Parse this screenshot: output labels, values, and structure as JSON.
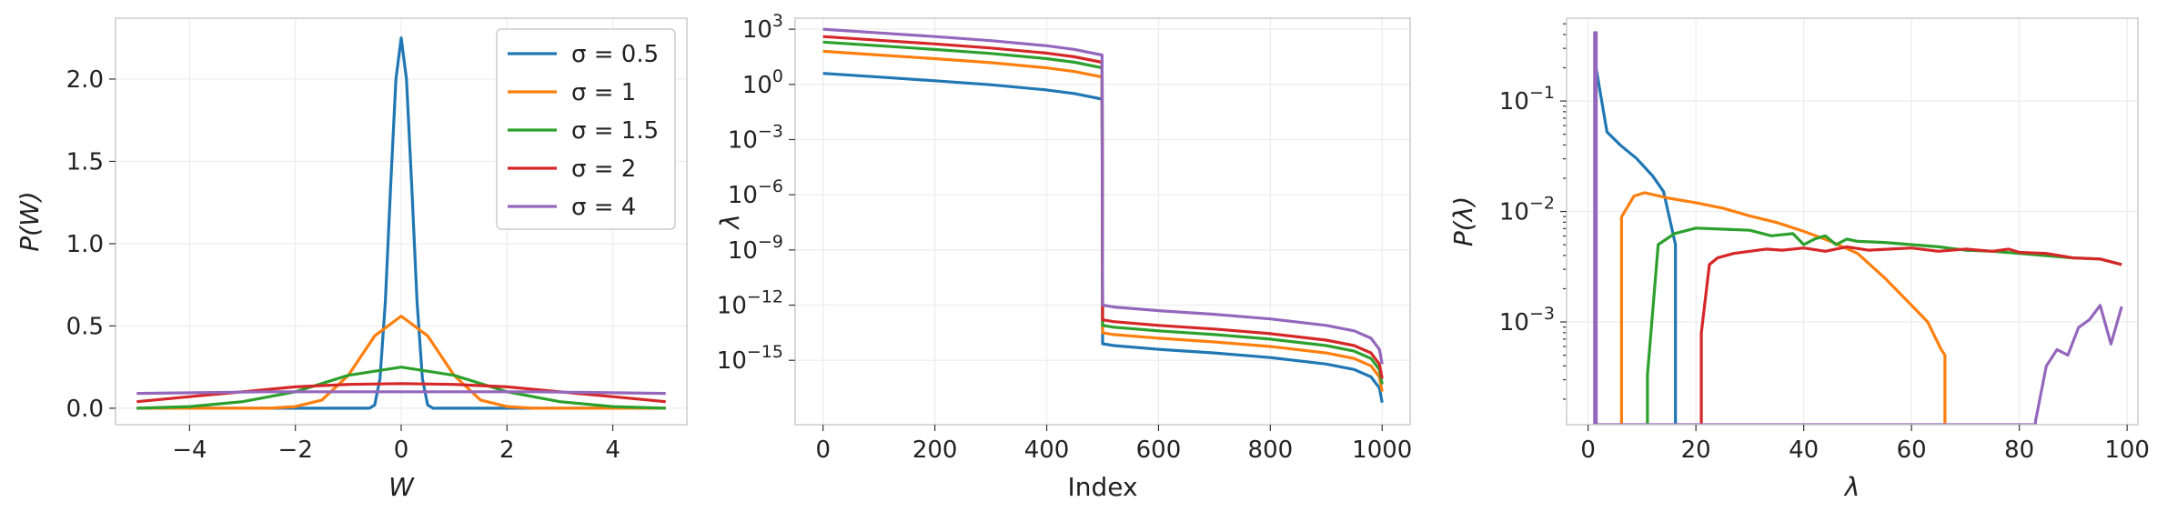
{
  "colors": {
    "c0": "#1f77b4",
    "c1": "#ff7f0e",
    "c2": "#2ca02c",
    "c3": "#d62728",
    "c4": "#9467bd"
  },
  "chart_data": [
    {
      "type": "line",
      "xlabel": "W",
      "ylabel": "P(W)",
      "xlim": [
        -5.4,
        5.4
      ],
      "ylim": [
        -0.1,
        2.37
      ],
      "xticks": [
        -4,
        -2,
        0,
        2,
        4
      ],
      "yticks": [
        0.0,
        0.5,
        1.0,
        1.5,
        2.0
      ],
      "legend": "top-right",
      "grid": true,
      "series": [
        {
          "name": "σ = 0.5",
          "color": "#1f77b4",
          "x": [
            -5,
            -1,
            -0.6,
            -0.5,
            -0.4,
            -0.3,
            -0.2,
            -0.1,
            0,
            0.1,
            0.2,
            0.3,
            0.4,
            0.5,
            0.6,
            1,
            5
          ],
          "y": [
            0,
            0,
            0,
            0.02,
            0.18,
            0.65,
            1.35,
            2.0,
            2.25,
            2.0,
            1.35,
            0.65,
            0.18,
            0.02,
            0,
            0,
            0
          ]
        },
        {
          "name": "σ = 1",
          "color": "#ff7f0e",
          "x": [
            -5,
            -2.5,
            -2,
            -1.5,
            -1,
            -0.5,
            0,
            0.5,
            1,
            1.5,
            2,
            2.5,
            5
          ],
          "y": [
            0,
            0,
            0.01,
            0.05,
            0.2,
            0.44,
            0.56,
            0.44,
            0.2,
            0.05,
            0.01,
            0,
            0
          ]
        },
        {
          "name": "σ = 1.5",
          "color": "#2ca02c",
          "x": [
            -5,
            -4,
            -3,
            -2,
            -1,
            0,
            1,
            2,
            3,
            4,
            5
          ],
          "y": [
            0,
            0.01,
            0.04,
            0.1,
            0.2,
            0.25,
            0.2,
            0.1,
            0.04,
            0.01,
            0
          ]
        },
        {
          "name": "σ = 2",
          "color": "#d62728",
          "x": [
            -5,
            -4,
            -3,
            -2,
            -1,
            0,
            1,
            2,
            3,
            4,
            5
          ],
          "y": [
            0.04,
            0.07,
            0.1,
            0.13,
            0.145,
            0.15,
            0.145,
            0.13,
            0.1,
            0.07,
            0.04
          ]
        },
        {
          "name": "σ = 4",
          "color": "#9467bd",
          "x": [
            -5,
            -2.5,
            0,
            2.5,
            5
          ],
          "y": [
            0.09,
            0.1,
            0.1,
            0.1,
            0.09
          ]
        }
      ]
    },
    {
      "type": "line",
      "xlabel": "Index",
      "ylabel": "λ",
      "xlim": [
        -50,
        1050
      ],
      "ylog_lim": [
        -18.5,
        3.6
      ],
      "yscale": "log",
      "xticks": [
        0,
        200,
        400,
        600,
        800,
        1000
      ],
      "yticks_exp": [
        3,
        0,
        -3,
        -6,
        -9,
        -12,
        -15
      ],
      "grid": true,
      "series": [
        {
          "color": "#1f77b4",
          "x": [
            0,
            100,
            200,
            300,
            400,
            450,
            499,
            500,
            520,
            600,
            700,
            800,
            900,
            950,
            980,
            995,
            1000
          ],
          "log10y": [
            0.6,
            0.4,
            0.2,
            -0.02,
            -0.3,
            -0.5,
            -0.8,
            -14.1,
            -14.2,
            -14.4,
            -14.6,
            -14.85,
            -15.2,
            -15.5,
            -15.9,
            -16.5,
            -17.3
          ]
        },
        {
          "color": "#ff7f0e",
          "x": [
            0,
            100,
            200,
            300,
            400,
            450,
            499,
            500,
            520,
            600,
            700,
            800,
            900,
            950,
            980,
            995,
            1000
          ],
          "log10y": [
            1.8,
            1.6,
            1.4,
            1.18,
            0.9,
            0.7,
            0.4,
            -13.5,
            -13.6,
            -13.8,
            -14.0,
            -14.25,
            -14.6,
            -14.9,
            -15.3,
            -15.9,
            -16.7
          ]
        },
        {
          "color": "#2ca02c",
          "x": [
            0,
            100,
            200,
            300,
            400,
            450,
            499,
            500,
            520,
            600,
            700,
            800,
            900,
            950,
            980,
            995,
            1000
          ],
          "log10y": [
            2.3,
            2.1,
            1.9,
            1.68,
            1.4,
            1.2,
            0.9,
            -13.1,
            -13.2,
            -13.4,
            -13.6,
            -13.85,
            -14.2,
            -14.5,
            -14.9,
            -15.5,
            -16.3
          ]
        },
        {
          "color": "#d62728",
          "x": [
            0,
            100,
            200,
            300,
            400,
            450,
            499,
            500,
            520,
            600,
            700,
            800,
            900,
            950,
            980,
            995,
            1000
          ],
          "log10y": [
            2.6,
            2.4,
            2.2,
            1.98,
            1.7,
            1.5,
            1.2,
            -12.8,
            -12.9,
            -13.1,
            -13.3,
            -13.55,
            -13.9,
            -14.2,
            -14.6,
            -15.2,
            -16.0
          ]
        },
        {
          "color": "#9467bd",
          "x": [
            0,
            100,
            200,
            300,
            400,
            450,
            499,
            500,
            520,
            600,
            700,
            800,
            900,
            950,
            980,
            995,
            1000
          ],
          "log10y": [
            3.0,
            2.8,
            2.6,
            2.38,
            2.1,
            1.9,
            1.6,
            -12.0,
            -12.1,
            -12.3,
            -12.5,
            -12.75,
            -13.1,
            -13.4,
            -13.8,
            -14.4,
            -15.2
          ]
        }
      ]
    },
    {
      "type": "line",
      "xlabel": "λ",
      "ylabel": "P(λ)",
      "xlim": [
        -4,
        102
      ],
      "ylog_lim": [
        -3.93,
        -0.25
      ],
      "yscale": "log",
      "xticks": [
        0,
        20,
        40,
        60,
        80,
        100
      ],
      "yticks_exp": [
        -1,
        -2,
        -3
      ],
      "grid": true,
      "series": [
        {
          "color": "#1f77b4",
          "x": [
            1.3,
            1.4,
            3.5,
            6,
            9,
            12,
            14,
            16.2,
            16.2
          ],
          "log10y": [
            -4.5,
            -0.68,
            -1.28,
            -1.4,
            -1.52,
            -1.68,
            -1.82,
            -2.3,
            -4.5
          ]
        },
        {
          "color": "#ff7f0e",
          "x": [
            6.2,
            6.2,
            8.5,
            10.5,
            15,
            20,
            25,
            30,
            35,
            40,
            45,
            50,
            55,
            60,
            63,
            65.5,
            66.2,
            66.2
          ],
          "log10y": [
            -4.5,
            -2.05,
            -1.86,
            -1.83,
            -1.88,
            -1.92,
            -1.97,
            -2.04,
            -2.1,
            -2.18,
            -2.27,
            -2.38,
            -2.6,
            -2.85,
            -3.0,
            -3.25,
            -3.3,
            -4.5
          ]
        },
        {
          "color": "#2ca02c",
          "x": [
            11,
            11,
            13,
            16,
            20,
            25,
            30,
            34,
            38,
            40,
            42,
            44,
            46,
            48,
            50,
            55,
            60,
            65,
            70,
            75,
            80,
            85,
            90,
            95,
            99
          ],
          "log10y": [
            -4.5,
            -3.48,
            -2.3,
            -2.2,
            -2.15,
            -2.16,
            -2.17,
            -2.22,
            -2.2,
            -2.3,
            -2.25,
            -2.22,
            -2.3,
            -2.25,
            -2.27,
            -2.28,
            -2.3,
            -2.32,
            -2.35,
            -2.36,
            -2.38,
            -2.4,
            -2.42,
            -2.43,
            -2.48
          ]
        },
        {
          "color": "#d62728",
          "x": [
            21,
            21,
            22.5,
            24,
            27,
            30,
            33,
            36,
            40,
            44,
            48,
            52,
            56,
            60,
            65,
            70,
            75,
            78,
            80,
            85,
            90,
            95,
            99
          ],
          "log10y": [
            -4.5,
            -3.1,
            -2.48,
            -2.42,
            -2.38,
            -2.36,
            -2.34,
            -2.35,
            -2.33,
            -2.36,
            -2.32,
            -2.35,
            -2.34,
            -2.33,
            -2.36,
            -2.34,
            -2.36,
            -2.34,
            -2.37,
            -2.38,
            -2.42,
            -2.43,
            -2.48
          ]
        },
        {
          "color": "#9467bd",
          "x": [
            1.2,
            1.2,
            1.5,
            1.5,
            83,
            83,
            85,
            87,
            89,
            91,
            93,
            95,
            97,
            99
          ],
          "log10y": [
            -4.5,
            -0.38,
            -0.38,
            -4.5,
            -4.5,
            -3.9,
            -3.4,
            -3.25,
            -3.3,
            -3.05,
            -2.98,
            -2.85,
            -3.2,
            -2.86
          ]
        }
      ]
    }
  ]
}
